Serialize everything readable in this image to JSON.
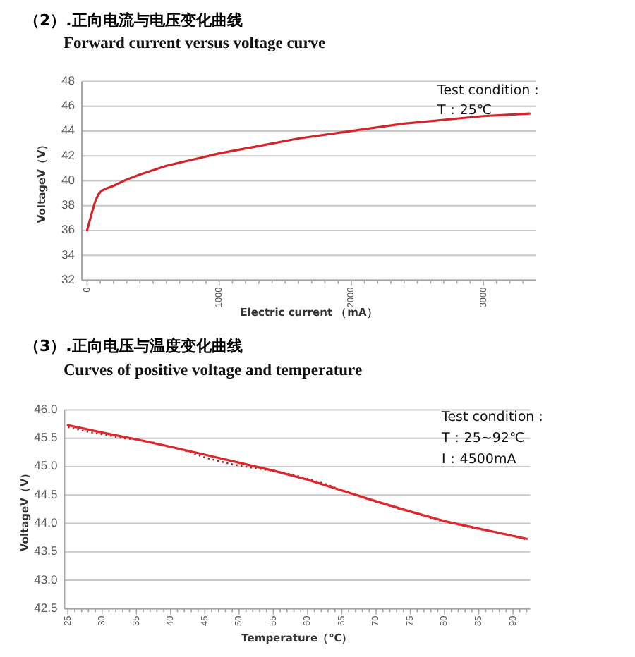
{
  "chart_data": [
    {
      "type": "line",
      "title": "（2）.正向电流与电压变化曲线",
      "subtitle": "Forward current versus voltage curve",
      "xlabel": "Electric current （mA）",
      "ylabel": "VoltageV（V）",
      "annotations": [
        "Test condition：",
        "T：25℃"
      ],
      "x": [
        0,
        30,
        60,
        85,
        110,
        150,
        200,
        300,
        400,
        600,
        800,
        1000,
        1300,
        1600,
        2000,
        2400,
        2800,
        3000,
        3350
      ],
      "series": [
        {
          "color": "#d4252a",
          "line_style": "solid",
          "values": [
            36.0,
            37.2,
            38.3,
            38.9,
            39.2,
            39.4,
            39.6,
            40.1,
            40.5,
            41.2,
            41.7,
            42.2,
            42.8,
            43.4,
            44.0,
            44.6,
            45.0,
            45.2,
            45.4
          ]
        }
      ],
      "xlim": [
        -40,
        3400
      ],
      "ylim": [
        32,
        48
      ],
      "xticks": [
        0,
        {
          "value": 100,
          "label": null
        },
        {
          "value": 200,
          "label": null
        },
        {
          "value": 300,
          "label": null
        },
        {
          "value": 400,
          "label": null
        },
        {
          "value": 500,
          "label": null
        },
        {
          "value": 600,
          "label": null
        },
        {
          "value": 700,
          "label": null
        },
        {
          "value": 800,
          "label": null
        },
        {
          "value": 900,
          "label": null
        },
        1000,
        {
          "value": 1100,
          "label": null
        },
        {
          "value": 1200,
          "label": null
        },
        {
          "value": 1300,
          "label": null
        },
        {
          "value": 1400,
          "label": null
        },
        {
          "value": 1500,
          "label": null
        },
        {
          "value": 1600,
          "label": null
        },
        {
          "value": 1700,
          "label": null
        },
        {
          "value": 1800,
          "label": null
        },
        {
          "value": 1900,
          "label": null
        },
        2000,
        {
          "value": 2100,
          "label": null
        },
        {
          "value": 2200,
          "label": null
        },
        {
          "value": 2300,
          "label": null
        },
        {
          "value": 2400,
          "label": null
        },
        {
          "value": 2500,
          "label": null
        },
        {
          "value": 2600,
          "label": null
        },
        {
          "value": 2700,
          "label": null
        },
        {
          "value": 2800,
          "label": null
        },
        {
          "value": 2900,
          "label": null
        },
        3000,
        {
          "value": 3100,
          "label": null
        },
        {
          "value": 3200,
          "label": null
        },
        {
          "value": 3300,
          "label": null
        }
      ],
      "yticks": [
        32,
        34,
        36,
        38,
        40,
        42,
        44,
        46,
        48
      ],
      "grid": "y"
    },
    {
      "type": "line",
      "title": "（3）.正向电压与温度变化曲线",
      "subtitle": "Curves of positive voltage and temperature",
      "xlabel": "Temperature（℃）",
      "ylabel": "VoltageV（V）",
      "annotations": [
        "Test condition：",
        "T：25~92℃",
        "I：4500mA"
      ],
      "series": [
        {
          "color": "#9e2a2b",
          "line_style": "dotted",
          "x": [
            25,
            27,
            29,
            31,
            33,
            35,
            37,
            39,
            41,
            43,
            45,
            47,
            49,
            51,
            53,
            55,
            57,
            59,
            61,
            63,
            65,
            67,
            69,
            71,
            73,
            75,
            77,
            79,
            81,
            83,
            85,
            87,
            89,
            91,
            92
          ],
          "values": [
            45.7,
            45.64,
            45.59,
            45.55,
            45.5,
            45.48,
            45.44,
            45.37,
            45.32,
            45.25,
            45.16,
            45.1,
            45.04,
            45.0,
            44.96,
            44.93,
            44.88,
            44.82,
            44.75,
            44.68,
            44.58,
            44.51,
            44.42,
            44.35,
            44.27,
            44.21,
            44.13,
            44.06,
            44.01,
            43.95,
            43.9,
            43.86,
            43.81,
            43.76,
            43.71
          ]
        },
        {
          "color": "#e0262b",
          "line_style": "solid",
          "x": [
            25,
            30,
            35,
            40,
            45,
            50,
            55,
            60,
            65,
            70,
            75,
            80,
            85,
            90,
            92
          ],
          "values": [
            45.73,
            45.6,
            45.48,
            45.35,
            45.21,
            45.07,
            44.93,
            44.77,
            44.58,
            44.39,
            44.21,
            44.04,
            43.91,
            43.78,
            43.73
          ]
        }
      ],
      "xlim": [
        24.5,
        92.5
      ],
      "ylim": [
        42.5,
        46.0
      ],
      "xticks": [
        25,
        {
          "value": 26,
          "label": null
        },
        {
          "value": 27,
          "label": null
        },
        {
          "value": 28,
          "label": null
        },
        {
          "value": 29,
          "label": null
        },
        30,
        {
          "value": 31,
          "label": null
        },
        {
          "value": 32,
          "label": null
        },
        {
          "value": 33,
          "label": null
        },
        {
          "value": 34,
          "label": null
        },
        35,
        {
          "value": 36,
          "label": null
        },
        {
          "value": 37,
          "label": null
        },
        {
          "value": 38,
          "label": null
        },
        {
          "value": 39,
          "label": null
        },
        40,
        {
          "value": 41,
          "label": null
        },
        {
          "value": 42,
          "label": null
        },
        {
          "value": 43,
          "label": null
        },
        {
          "value": 44,
          "label": null
        },
        45,
        {
          "value": 46,
          "label": null
        },
        {
          "value": 47,
          "label": null
        },
        {
          "value": 48,
          "label": null
        },
        {
          "value": 49,
          "label": null
        },
        50,
        {
          "value": 51,
          "label": null
        },
        {
          "value": 52,
          "label": null
        },
        {
          "value": 53,
          "label": null
        },
        {
          "value": 54,
          "label": null
        },
        55,
        {
          "value": 56,
          "label": null
        },
        {
          "value": 57,
          "label": null
        },
        {
          "value": 58,
          "label": null
        },
        {
          "value": 59,
          "label": null
        },
        60,
        {
          "value": 61,
          "label": null
        },
        {
          "value": 62,
          "label": null
        },
        {
          "value": 63,
          "label": null
        },
        {
          "value": 64,
          "label": null
        },
        65,
        {
          "value": 66,
          "label": null
        },
        {
          "value": 67,
          "label": null
        },
        {
          "value": 68,
          "label": null
        },
        {
          "value": 69,
          "label": null
        },
        70,
        {
          "value": 71,
          "label": null
        },
        {
          "value": 72,
          "label": null
        },
        {
          "value": 73,
          "label": null
        },
        {
          "value": 74,
          "label": null
        },
        75,
        {
          "value": 76,
          "label": null
        },
        {
          "value": 77,
          "label": null
        },
        {
          "value": 78,
          "label": null
        },
        {
          "value": 79,
          "label": null
        },
        80,
        {
          "value": 81,
          "label": null
        },
        {
          "value": 82,
          "label": null
        },
        {
          "value": 83,
          "label": null
        },
        {
          "value": 84,
          "label": null
        },
        85,
        {
          "value": 86,
          "label": null
        },
        {
          "value": 87,
          "label": null
        },
        {
          "value": 88,
          "label": null
        },
        {
          "value": 89,
          "label": null
        },
        90,
        {
          "value": 91,
          "label": null
        },
        {
          "value": 92,
          "label": null
        }
      ],
      "yticks": [
        {
          "value": 42.5,
          "label": "42.5"
        },
        {
          "value": 43,
          "label": "43.0"
        },
        43.5,
        {
          "value": 44,
          "label": "44.0"
        },
        44.5,
        {
          "value": 45,
          "label": "45.0"
        },
        45.5,
        {
          "value": 46,
          "label": "46.0"
        }
      ],
      "grid": "y"
    }
  ]
}
